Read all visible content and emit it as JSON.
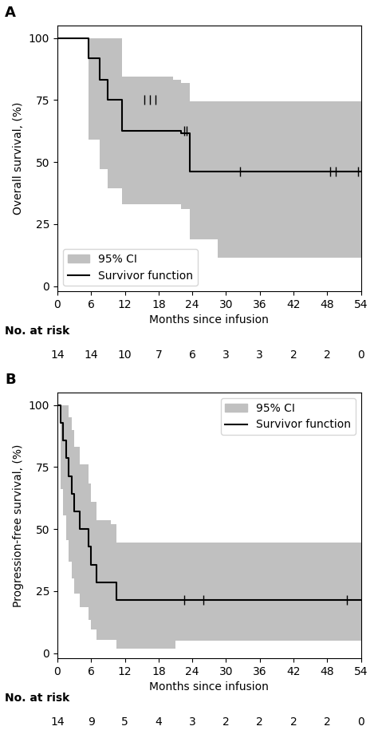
{
  "chart_data": [
    {
      "type": "step",
      "label": "A",
      "xlabel": "Months since infusion",
      "ylabel": "Overall survival, (%)",
      "xlim": [
        0,
        54
      ],
      "ylim": [
        -2,
        105
      ],
      "xticks": [
        0,
        6,
        12,
        18,
        24,
        30,
        36,
        42,
        48,
        54
      ],
      "yticks": [
        0,
        25,
        50,
        75,
        100
      ],
      "x": [
        0,
        5.5,
        7.5,
        9.0,
        11.5,
        20.5,
        22.0,
        23.5,
        28.5,
        54
      ],
      "series": [
        {
          "name": "95% CI",
          "type": "area",
          "color": "#c0c0c0",
          "upper": [
            100,
            100,
            100,
            100,
            84.5,
            83.0,
            82.0,
            74.5,
            74.5,
            74.5
          ],
          "lower": [
            100,
            59.0,
            47.2,
            39.5,
            33.0,
            33.0,
            31.0,
            19.0,
            11.5,
            11.5
          ]
        },
        {
          "name": "Survivor function",
          "type": "step",
          "color": "#000000",
          "values": [
            100,
            91.7,
            83.3,
            75.0,
            62.5,
            62.5,
            61.5,
            46.2,
            46.2,
            46.2
          ]
        },
        {
          "type": "scatter",
          "marker": "|",
          "color": "#000000",
          "x": [
            15.5,
            16.5,
            17.5,
            22.5,
            23.0,
            32.5,
            48.5,
            49.5,
            53.5
          ],
          "values": [
            75.0,
            75.0,
            75.0,
            62.5,
            62.5,
            46.2,
            46.2,
            46.2,
            46.2
          ]
        }
      ],
      "at_risk_label": "No. at risk",
      "at_risk_x": [
        0,
        6,
        12,
        18,
        24,
        30,
        36,
        42,
        48,
        54
      ],
      "at_risk": [
        14,
        14,
        10,
        7,
        6,
        3,
        3,
        2,
        2,
        0
      ],
      "legend": "lower left"
    },
    {
      "type": "step",
      "label": "B",
      "xlabel": "Months since infusion",
      "ylabel": "Progression-free survival, (%)",
      "xlim": [
        0,
        54
      ],
      "ylim": [
        -2,
        105
      ],
      "xticks": [
        0,
        6,
        12,
        18,
        24,
        30,
        36,
        42,
        48,
        54
      ],
      "yticks": [
        0,
        25,
        50,
        75,
        100
      ],
      "x": [
        0,
        0.5,
        1.0,
        1.5,
        2.0,
        2.5,
        3.0,
        4.0,
        5.5,
        6.0,
        7.0,
        9.5,
        10.5,
        13.0,
        21.0,
        54
      ],
      "series": [
        {
          "name": "95% CI",
          "type": "area",
          "color": "#c0c0c0",
          "upper": [
            100,
            100,
            100,
            100,
            95.0,
            90.0,
            83.0,
            76.0,
            68.5,
            61.0,
            53.5,
            52.0,
            44.5,
            44.5,
            44.5,
            44.5
          ],
          "lower": [
            100,
            66.0,
            55.5,
            45.5,
            37.0,
            30.0,
            24.0,
            18.5,
            13.5,
            9.5,
            5.5,
            5.5,
            2.0,
            2.0,
            5.0,
            5.0
          ]
        },
        {
          "name": "Survivor function",
          "type": "step",
          "color": "#000000",
          "values": [
            100,
            92.9,
            85.7,
            78.6,
            71.4,
            64.3,
            57.1,
            50.0,
            42.9,
            35.7,
            28.6,
            28.6,
            21.4,
            21.4,
            21.4,
            21.4
          ]
        },
        {
          "type": "scatter",
          "marker": "|",
          "color": "#000000",
          "x": [
            22.5,
            26.0,
            51.5
          ],
          "values": [
            21.4,
            21.4,
            21.4
          ]
        }
      ],
      "at_risk_label": "No. at risk",
      "at_risk_x": [
        0,
        6,
        12,
        18,
        24,
        30,
        36,
        42,
        48,
        54
      ],
      "at_risk": [
        14,
        9,
        5,
        4,
        3,
        2,
        2,
        2,
        2,
        0
      ],
      "legend": "upper right"
    }
  ]
}
